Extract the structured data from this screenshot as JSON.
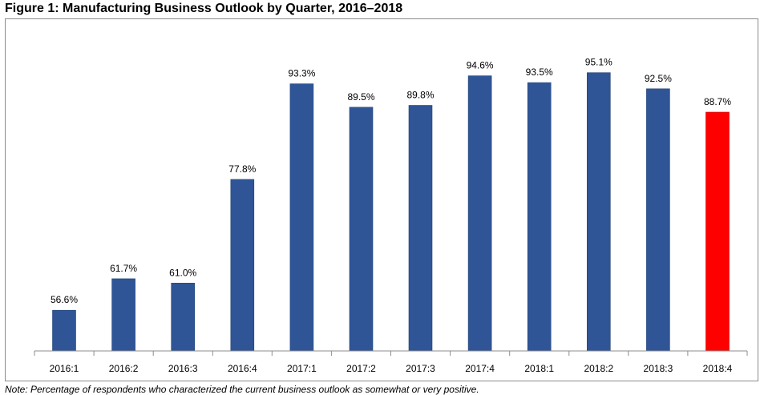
{
  "chart_data": {
    "type": "bar",
    "title": "Figure 1: Manufacturing Business Outlook by Quarter, 2016–2018",
    "categories": [
      "2016:1",
      "2016:2",
      "2016:3",
      "2016:4",
      "2017:1",
      "2017:2",
      "2017:3",
      "2017:4",
      "2018:1",
      "2018:2",
      "2018:3",
      "2018:4"
    ],
    "values": [
      56.6,
      61.7,
      61.0,
      77.8,
      93.3,
      89.5,
      89.8,
      94.6,
      93.5,
      95.1,
      92.5,
      88.7
    ],
    "data_labels": [
      "56.6%",
      "61.7%",
      "61.0%",
      "77.8%",
      "93.3%",
      "89.5%",
      "89.8%",
      "94.6%",
      "93.5%",
      "95.1%",
      "92.5%",
      "88.7%"
    ],
    "xlabel": "",
    "ylabel": "",
    "ylim": [
      50,
      100
    ],
    "grid": false,
    "legend": "none",
    "colors": {
      "default_bar": "#2f5597",
      "highlight_bar": "#ff0000",
      "axis": "#8c8c8c"
    },
    "highlight_index": 11
  },
  "note": "Note: Percentage of respondents who characterized the current business outlook as somewhat or very positive."
}
